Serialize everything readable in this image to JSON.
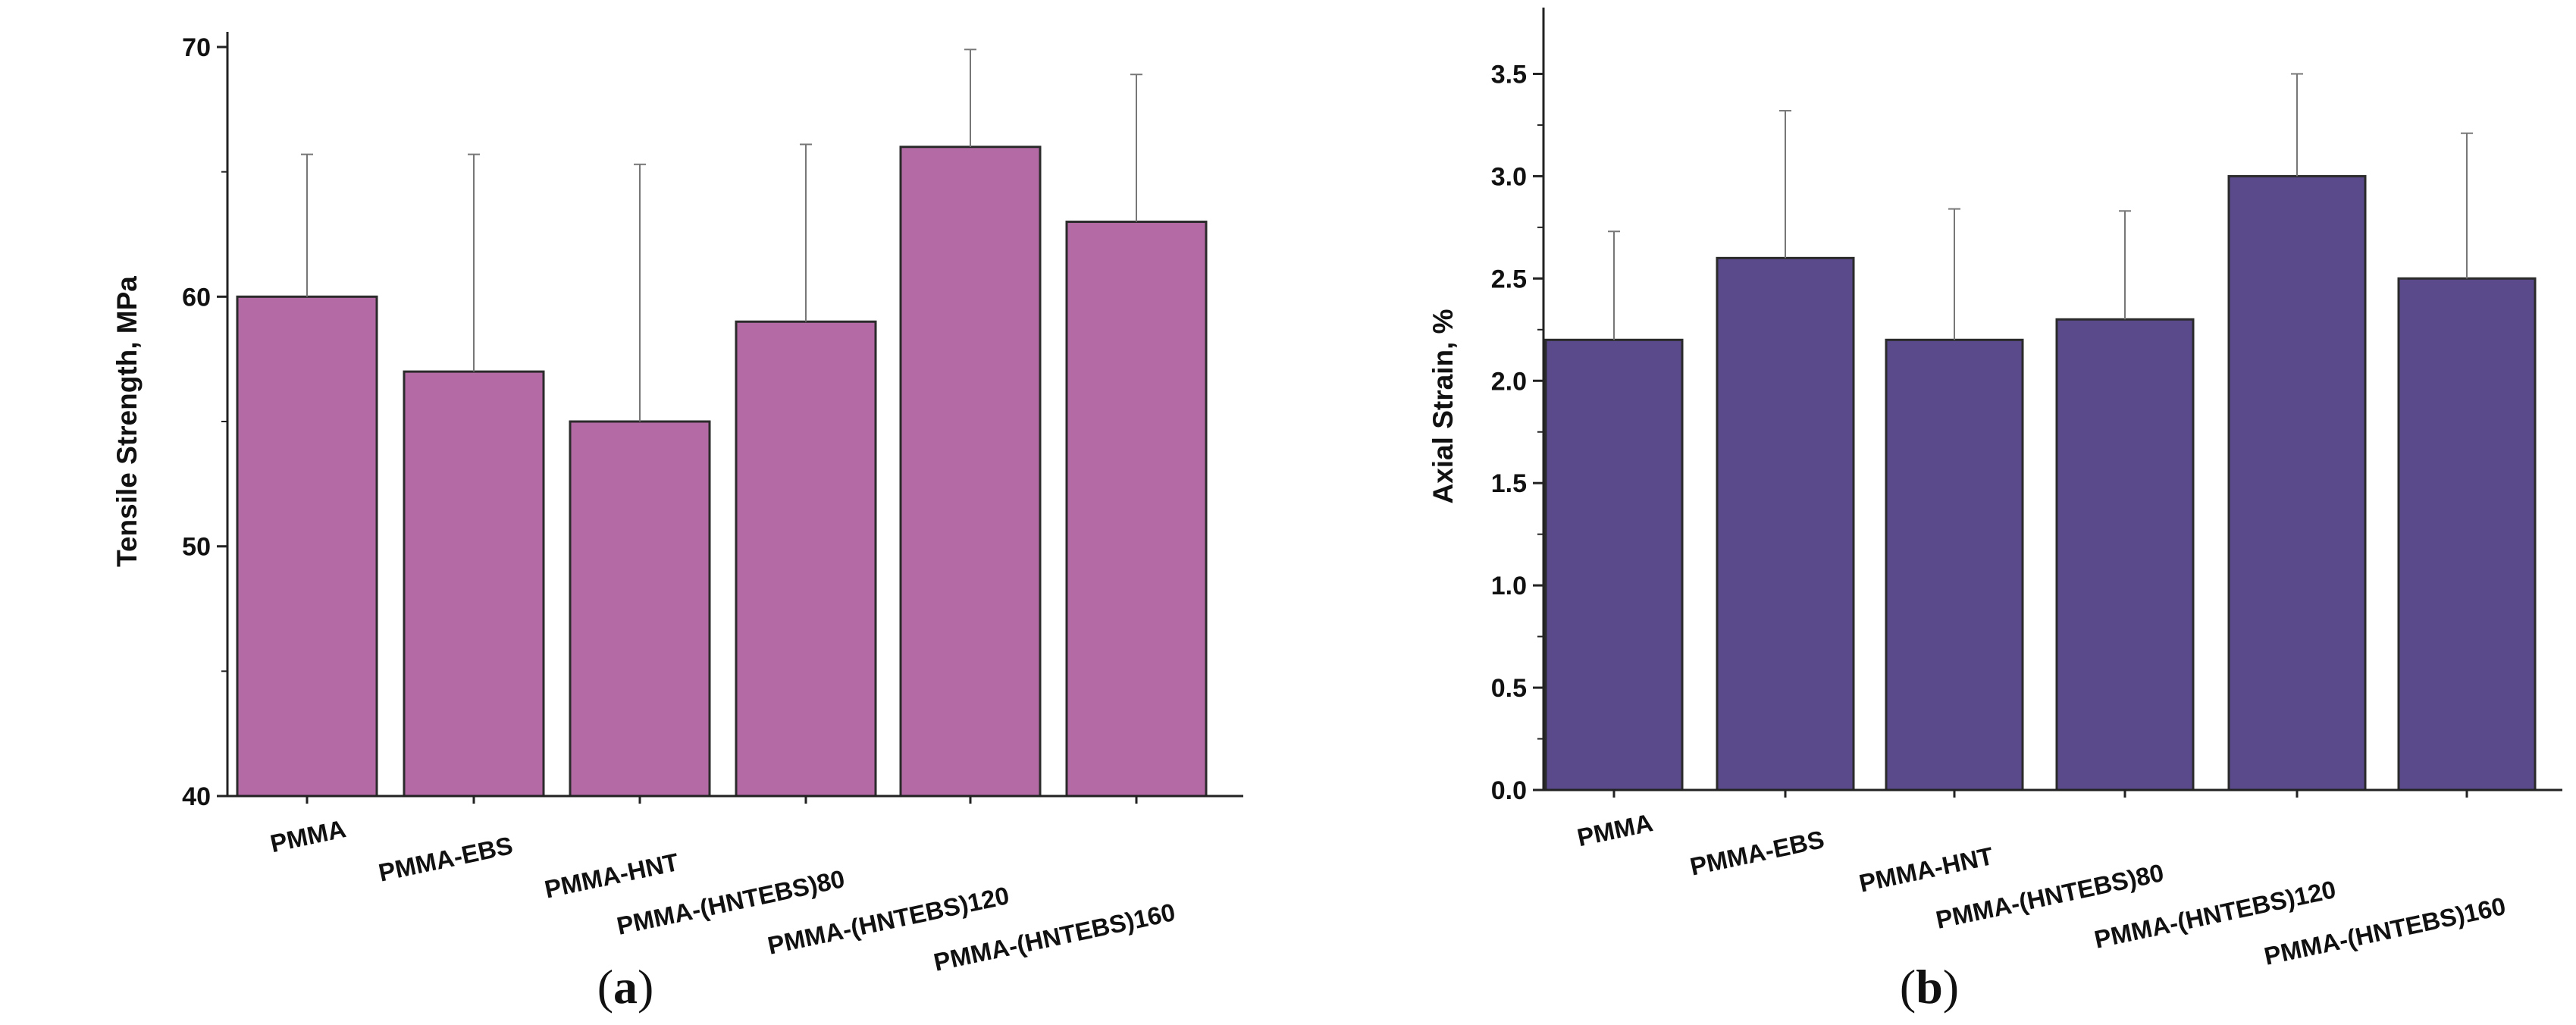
{
  "chart_data": [
    {
      "type": "bar",
      "panel_label": "a",
      "categories": [
        "PMMA",
        "PMMA-EBS",
        "PMMA-HNT",
        "PMMA-(HNTEBS)80",
        "PMMA-(HNTEBS)120",
        "PMMA-(HNTEBS)160"
      ],
      "values": [
        60,
        57,
        55,
        59,
        66,
        63
      ],
      "error_plus": [
        5.7,
        8.7,
        10.3,
        7.1,
        3.9,
        5.9
      ],
      "ylabel": "Tensile Strength, MPa",
      "xlabel": "",
      "ylim": [
        40,
        70
      ],
      "yticks": [
        40,
        50,
        60,
        70
      ],
      "ytick_labels": [
        "40",
        "50",
        "60",
        "70"
      ],
      "bar_color": "#b46aa5"
    },
    {
      "type": "bar",
      "panel_label": "b",
      "categories": [
        "PMMA",
        "PMMA-EBS",
        "PMMA-HNT",
        "PMMA-(HNTEBS)80",
        "PMMA-(HNTEBS)120",
        "PMMA-(HNTEBS)160"
      ],
      "values": [
        2.2,
        2.6,
        2.2,
        2.3,
        3.0,
        2.5
      ],
      "error_plus": [
        0.53,
        0.72,
        0.64,
        0.53,
        0.5,
        0.71
      ],
      "ylabel": "Axial Strain, %",
      "xlabel": "",
      "ylim": [
        0,
        3.75
      ],
      "yticks": [
        0,
        0.5,
        1.0,
        1.5,
        2.0,
        2.5,
        3.0,
        3.5
      ],
      "ytick_labels": [
        "0.0",
        "0.5",
        "1.0",
        "1.5",
        "2.0",
        "2.5",
        "3.0",
        "3.5"
      ],
      "bar_color": "#5a4a8c"
    }
  ]
}
